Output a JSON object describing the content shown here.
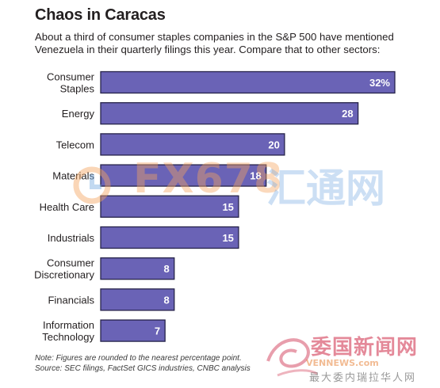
{
  "header": {
    "title": "Chaos in Caracas",
    "subtitle": "About a third of consumer staples companies in the S&P 500 have mentioned Venezuela in their quarterly filings this year. Compare that to other sectors:"
  },
  "footer": {
    "note": "Note: Figures are rounded to the nearest percentage point.",
    "source": "Source: SEC filings, FactSet GICS industries, CNBC analysis"
  },
  "watermarks": {
    "fx_text": "FX678",
    "cn_text": "汇通网",
    "cn_text2": "委国新闻网",
    "ven_text": "VENNEWS.com",
    "cn_text3": "最大委内瑞拉华人网"
  },
  "colors": {
    "bar_fill": "#6a63b6",
    "bar_stroke": "#26234a",
    "value_text": "#ffffff",
    "text": "#231f20"
  },
  "chart_data": {
    "type": "bar",
    "orientation": "horizontal",
    "categories": [
      [
        "Consumer",
        "Staples"
      ],
      [
        "Energy"
      ],
      [
        "Telecom"
      ],
      [
        "Materials"
      ],
      [
        "Health Care"
      ],
      [
        "Industrials"
      ],
      [
        "Consumer",
        "Discretionary"
      ],
      [
        "Financials"
      ],
      [
        "Information",
        "Technology"
      ]
    ],
    "values": [
      32,
      28,
      20,
      18,
      15,
      15,
      8,
      8,
      7
    ],
    "value_labels": [
      "32%",
      "28",
      "20",
      "18",
      "15",
      "15",
      "8",
      "8",
      "7"
    ],
    "xlim": [
      0,
      32
    ],
    "grid": false,
    "legend": "none"
  }
}
